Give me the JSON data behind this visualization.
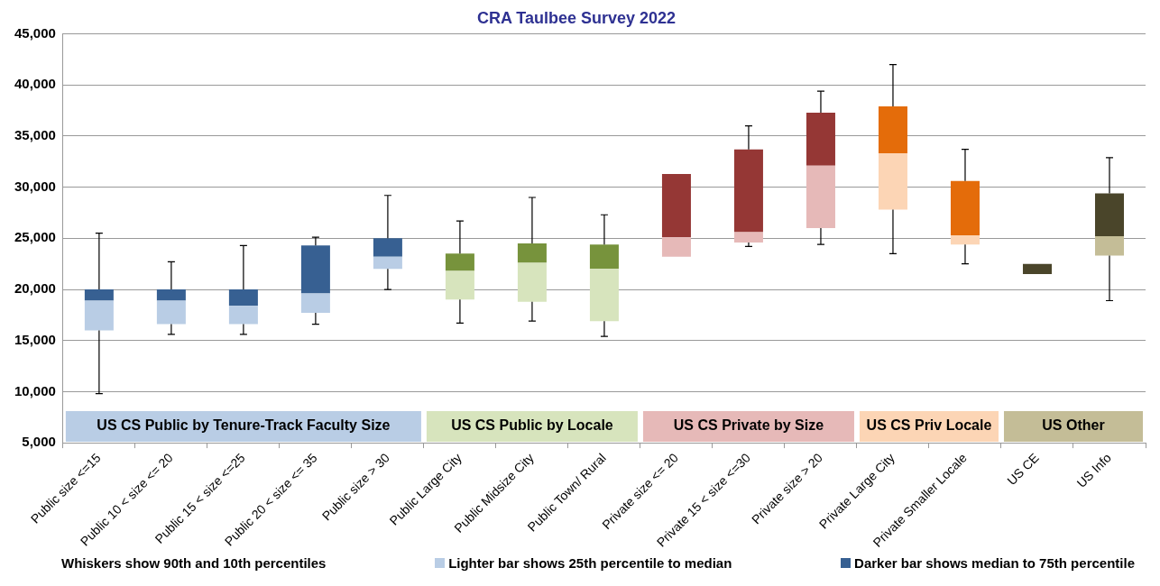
{
  "chart_data": {
    "type": "box",
    "title": "CRA Taulbee Survey 2022",
    "categories": [
      "Public size <=15",
      "Public 10 < size <= 20",
      "Public 15 < size <=25",
      "Public 20 < size <= 35",
      "Public size > 30",
      "Public Large City",
      "Public Midsize City",
      "Public Town/ Rural",
      "Private size <= 20",
      "Private 15 < size <=30",
      "Private size > 20",
      "Private Large City",
      "Private Smaller Locale",
      "US CE",
      "US Info"
    ],
    "series": [
      {
        "name": "US CS Public by Tenure-Track Faculty Size",
        "color": "#376092",
        "colors": [
          "#b9cde5",
          "#b9cde5",
          "#b9cde5",
          "#b9cde5",
          "#b9cde5",
          null,
          null,
          null,
          null,
          null,
          null,
          null,
          null,
          null,
          null
        ],
        "boxes": [
          {
            "low": 9800,
            "q1": 16000,
            "median": 18900,
            "q3": 20000,
            "high": 25500
          },
          {
            "low": 15600,
            "q1": 16600,
            "median": 18900,
            "q3": 20000,
            "high": 22700
          },
          {
            "low": 15600,
            "q1": 16600,
            "median": 18400,
            "q3": 20000,
            "high": 24300
          },
          {
            "low": 16600,
            "q1": 17700,
            "median": 19600,
            "q3": 24300,
            "high": 25100
          },
          {
            "low": 20000,
            "q1": 22000,
            "median": 23200,
            "q3": 25000,
            "high": 29200
          },
          null,
          null,
          null,
          null,
          null,
          null,
          null,
          null,
          null,
          null
        ]
      },
      {
        "name": "US CS Public by Locale",
        "color": "#77933c",
        "colors": [
          null,
          null,
          null,
          null,
          null,
          "#d7e4bd",
          "#d7e4bd",
          "#d7e4bd",
          null,
          null,
          null,
          null,
          null,
          null,
          null
        ],
        "boxes": [
          null,
          null,
          null,
          null,
          null,
          {
            "low": 16700,
            "q1": 19000,
            "median": 21800,
            "q3": 23500,
            "high": 26700
          },
          {
            "low": 16900,
            "q1": 18800,
            "median": 22600,
            "q3": 24500,
            "high": 29000
          },
          {
            "low": 15400,
            "q1": 16900,
            "median": 22000,
            "q3": 24400,
            "high": 27300
          },
          null,
          null,
          null,
          null,
          null,
          null,
          null
        ]
      },
      {
        "name": "US CS Private by Size",
        "color": "#953735",
        "colors": [
          null,
          null,
          null,
          null,
          null,
          null,
          null,
          null,
          "#e6b9b8",
          "#e6b9b8",
          "#e6b9b8",
          null,
          null,
          null,
          null
        ],
        "boxes": [
          null,
          null,
          null,
          null,
          null,
          null,
          null,
          null,
          {
            "low": null,
            "q1": 23200,
            "median": 25100,
            "q3": 31300,
            "high": null
          },
          {
            "low": 24200,
            "q1": 24600,
            "median": 25600,
            "q3": 33700,
            "high": 36000
          },
          {
            "low": 24400,
            "q1": 26000,
            "median": 32100,
            "q3": 37300,
            "high": 39400
          },
          null,
          null,
          null,
          null
        ]
      },
      {
        "name": "US CS Priv Locale",
        "color": "#e46c0a",
        "colors": [
          null,
          null,
          null,
          null,
          null,
          null,
          null,
          null,
          null,
          null,
          null,
          "#fcd5b5",
          "#fcd5b5",
          null,
          null
        ],
        "boxes": [
          null,
          null,
          null,
          null,
          null,
          null,
          null,
          null,
          null,
          null,
          null,
          {
            "low": 23500,
            "q1": 27800,
            "median": 33300,
            "q3": 37900,
            "high": 42000
          },
          {
            "low": 22500,
            "q1": 24400,
            "median": 25300,
            "q3": 30600,
            "high": 33700
          },
          null,
          null
        ]
      },
      {
        "name": "US Other",
        "color": "#4a452a",
        "colors": [
          null,
          null,
          null,
          null,
          null,
          null,
          null,
          null,
          null,
          null,
          null,
          null,
          null,
          null,
          "#c4bd97"
        ],
        "boxes": [
          null,
          null,
          null,
          null,
          null,
          null,
          null,
          null,
          null,
          null,
          null,
          null,
          null,
          {
            "low": null,
            "q1": 21500,
            "median": 21500,
            "q3": 22500,
            "high": null
          },
          {
            "low": 18900,
            "q1": 23300,
            "median": 25200,
            "q3": 29400,
            "high": 32900
          }
        ]
      }
    ],
    "ylim": [
      5000,
      45000
    ],
    "yticks": [
      {
        "value": 5000,
        "label": "5,000"
      },
      {
        "value": 10000,
        "label": "10,000"
      },
      {
        "value": 15000,
        "label": "15,000"
      },
      {
        "value": 20000,
        "label": "20,000"
      },
      {
        "value": 25000,
        "label": "25,000"
      },
      {
        "value": 30000,
        "label": "30,000"
      },
      {
        "value": 35000,
        "label": "35,000"
      },
      {
        "value": 40000,
        "label": "40,000"
      },
      {
        "value": 45000,
        "label": "45,000"
      }
    ],
    "grid": "y",
    "annotations": [
      "Whiskers show 90th and 10th percentiles",
      "Lighter bar shows 25th percentile to median",
      "Darker bar shows median to 75th percentile"
    ]
  }
}
